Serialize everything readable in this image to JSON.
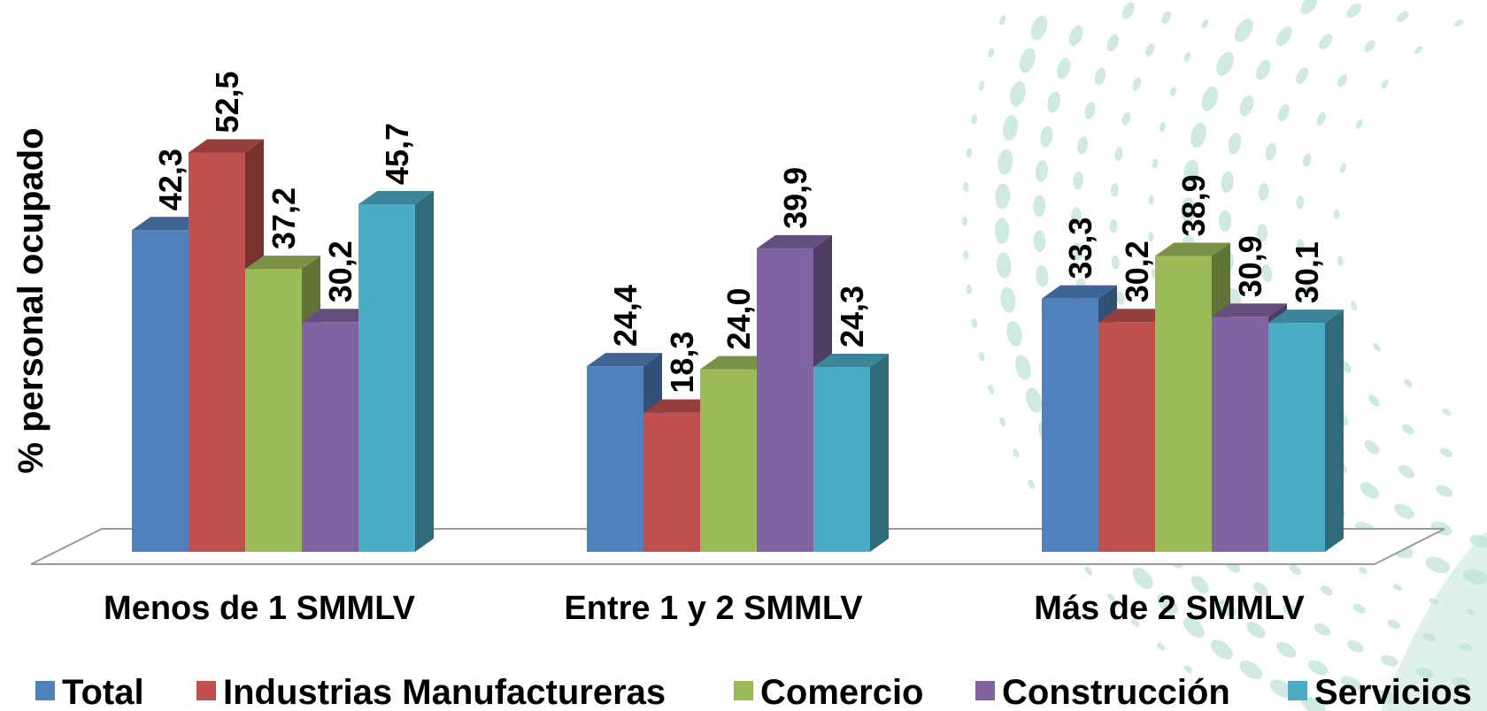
{
  "colors": {
    "series": [
      "#4F81BD",
      "#C0504D",
      "#9BBB59",
      "#8064A2",
      "#4BACC6"
    ],
    "background_pattern": "#bfe4d6"
  },
  "chart_data": {
    "type": "bar",
    "style": "3d-clustered",
    "title": "",
    "xlabel": "",
    "ylabel": "% personal ocupado",
    "ylim": [
      0,
      60
    ],
    "grid": false,
    "legend_position": "bottom",
    "categories": [
      "Menos de 1 SMMLV",
      "Entre 1 y 2 SMMLV",
      "Más de 2 SMMLV"
    ],
    "series": [
      {
        "name": "Total",
        "values": [
          42.3,
          24.4,
          33.3
        ],
        "labels": [
          "42,3",
          "24,4",
          "33,3"
        ]
      },
      {
        "name": "Industrias Manufactureras",
        "values": [
          52.5,
          18.3,
          30.2
        ],
        "labels": [
          "52,5",
          "18,3",
          "30,2"
        ]
      },
      {
        "name": "Comercio",
        "values": [
          37.2,
          24.0,
          38.9
        ],
        "labels": [
          "37,2",
          "24,0",
          "38,9"
        ]
      },
      {
        "name": "Construcción",
        "values": [
          30.2,
          39.9,
          30.9
        ],
        "labels": [
          "30,2",
          "39,9",
          "30,9"
        ]
      },
      {
        "name": "Servicios",
        "values": [
          45.7,
          24.3,
          30.1
        ],
        "labels": [
          "45,7",
          "24,3",
          "30,1"
        ]
      }
    ]
  }
}
